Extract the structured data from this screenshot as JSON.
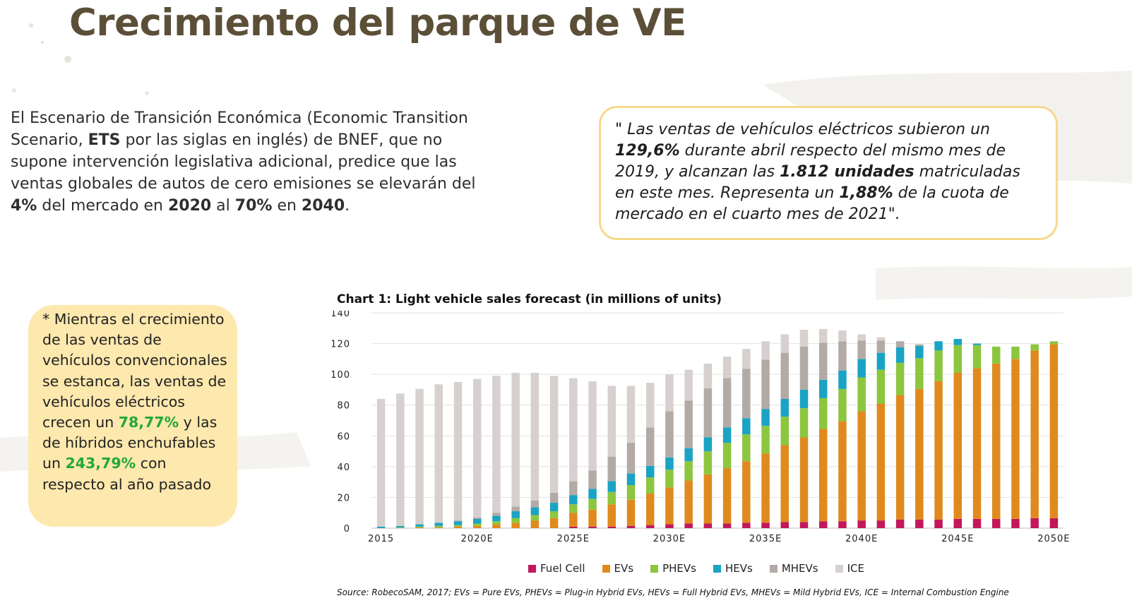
{
  "slide": {
    "title": "Crecimiento del parque de VE",
    "intro": {
      "p1": "El Escenario de Transición Económica (Economic Transition Scenario, ",
      "b1": "ETS",
      "p2": " por las siglas en inglés) de BNEF, que no supone intervención legislativa adicional, predice que las ventas globales de autos de cero emisiones se elevarán del ",
      "b2": "4%",
      "p3": " del mercado en ",
      "b3": "2020",
      "p4": " al ",
      "b4": "70%",
      "p5": " en ",
      "b5": "2040",
      "p6": "."
    },
    "quote": {
      "p1": "\" Las ventas de vehículos eléctricos subieron un ",
      "b1": "129,6%",
      "p2": " durante abril respecto del mismo mes de 2019, y alcanzan las ",
      "b2": "1.812 unidades",
      "p3": " matriculadas en este mes. Representa un ",
      "b3": "1,88%",
      "p4": " de la cuota de mercado en el cuarto mes de 2021\"."
    },
    "note": {
      "p1": "* Mientras el crecimiento de las ventas de vehículos convencionales se estanca, las ventas de vehículos eléctricos crecen un ",
      "g1": "78,77%",
      "p2": " y las de híbridos enchufables un ",
      "g2": "243,79%",
      "p3": " con respecto al año pasado"
    },
    "source": "Source: RobecoSAM, 2017; EVs = Pure EVs, PHEVs = Plug-in Hybrid EVs, HEVs = Full Hybrid EVs, MHEVs = Mild Hybrid EVs, ICE = Internal Combustion Engine",
    "colors": {
      "title": "#5c4f38",
      "highlight_green": "#22a83a",
      "note_bg": "#fde8ad",
      "quote_border": "#f7d98b"
    }
  },
  "chart_data": {
    "type": "bar",
    "stacked": true,
    "title": "Chart 1: Light vehicle sales forecast (in millions of units)",
    "ylim": [
      0,
      140
    ],
    "y_ticks": [
      0,
      20,
      40,
      60,
      80,
      100,
      120,
      140
    ],
    "x_tick_labels": [
      "2015",
      "2020E",
      "2025E",
      "2030E",
      "2035E",
      "2040E",
      "2045E",
      "2050E"
    ],
    "grid": true,
    "legend_position": "bottom",
    "categories": [
      2015,
      2016,
      2017,
      2018,
      2019,
      2020,
      2021,
      2022,
      2023,
      2024,
      2025,
      2026,
      2027,
      2028,
      2029,
      2030,
      2031,
      2032,
      2033,
      2034,
      2035,
      2036,
      2037,
      2038,
      2039,
      2040,
      2041,
      2042,
      2043,
      2044,
      2045,
      2046,
      2047,
      2048,
      2049,
      2050
    ],
    "series": [
      {
        "name": "Fuel Cell",
        "color": "#c2185b",
        "values": [
          0,
          0,
          0,
          0,
          0,
          0,
          0,
          0,
          0,
          0,
          1,
          1,
          1,
          1.5,
          2,
          2.5,
          3,
          3,
          3,
          3.5,
          3.5,
          4,
          4,
          4.5,
          4.5,
          5,
          5,
          5.5,
          5.5,
          5.5,
          6,
          6,
          6,
          6,
          6.5,
          6.5
        ]
      },
      {
        "name": "EVs",
        "color": "#e08a1e",
        "values": [
          0,
          0,
          0.5,
          0.5,
          1,
          1.5,
          2.5,
          3.5,
          5,
          6.5,
          9,
          11,
          14.5,
          17,
          20.5,
          24,
          28,
          32,
          36,
          40,
          45,
          50,
          55,
          60,
          65,
          71,
          76,
          81,
          85,
          90,
          95,
          98,
          101,
          104,
          109,
          113
        ]
      },
      {
        "name": "PHEVs",
        "color": "#8cc63f",
        "values": [
          0,
          0.5,
          0.5,
          1,
          1,
          1.5,
          2,
          3,
          3.5,
          4.5,
          5.5,
          7,
          8,
          9.5,
          10.5,
          11.5,
          12.5,
          15,
          16.5,
          17.5,
          18,
          18.5,
          19,
          20,
          21,
          22,
          22,
          21,
          20,
          20,
          18,
          15,
          11,
          8,
          4,
          2
        ]
      },
      {
        "name": "HEVs",
        "color": "#1aa3c4",
        "values": [
          1,
          1,
          1.5,
          2,
          2.5,
          3,
          3.5,
          4.5,
          5,
          5.5,
          6,
          6.5,
          7,
          7.5,
          7.5,
          8,
          8.5,
          9,
          10,
          10.5,
          11,
          11.5,
          12,
          12,
          12,
          12,
          11,
          10,
          8,
          6,
          4,
          1,
          0,
          0,
          0,
          0
        ]
      },
      {
        "name": "MHEVs",
        "color": "#b3aaa6",
        "values": [
          0,
          0,
          0,
          0,
          0.5,
          1,
          2,
          3,
          4.5,
          6.5,
          9,
          12,
          16,
          20,
          25,
          30,
          31,
          32,
          32,
          32,
          32,
          30,
          28,
          24,
          19,
          12,
          8,
          4,
          1,
          0,
          0,
          0,
          0,
          0,
          0,
          0
        ]
      },
      {
        "name": "ICE",
        "color": "#d6d1ce",
        "values": [
          83,
          86,
          88,
          90,
          90,
          90,
          89,
          87,
          83,
          76,
          67,
          58,
          46,
          37,
          29,
          24,
          20,
          16,
          14,
          13,
          12,
          12,
          11,
          9,
          7,
          4,
          2,
          0,
          0,
          0,
          0,
          0,
          0,
          0,
          0,
          0
        ]
      }
    ]
  }
}
